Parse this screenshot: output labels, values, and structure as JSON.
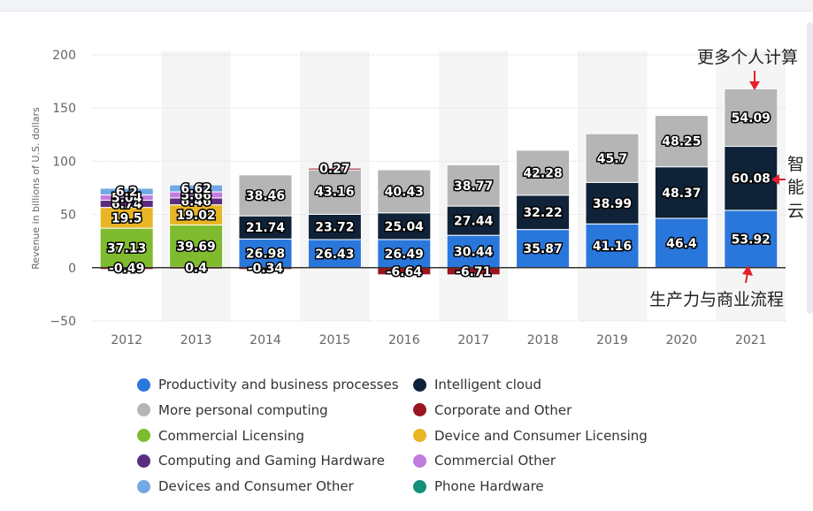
{
  "chart_data": {
    "type": "bar",
    "stacked": true,
    "ylabel": "Revenue in billions of U.S. dollars",
    "ylim": [
      -50,
      200
    ],
    "yticks": [
      200,
      150,
      100,
      50,
      0,
      -50
    ],
    "categories": [
      "2012",
      "2013",
      "2014",
      "2015",
      "2016",
      "2017",
      "2018",
      "2019",
      "2020",
      "2021"
    ],
    "series": [
      {
        "name": "Productivity and business processes",
        "color": "#2a77dc",
        "values": [
          0,
          0,
          26.98,
          26.43,
          26.49,
          30.44,
          35.87,
          41.16,
          46.4,
          53.92
        ]
      },
      {
        "name": "Intelligent cloud",
        "color": "#0f2237",
        "values": [
          0,
          0,
          21.74,
          23.72,
          25.04,
          27.44,
          32.22,
          38.99,
          48.37,
          60.08
        ]
      },
      {
        "name": "More personal computing",
        "color": "#b5b5b5",
        "values": [
          0,
          0,
          38.46,
          43.16,
          40.43,
          38.77,
          42.28,
          45.7,
          48.25,
          54.09
        ]
      },
      {
        "name": "Corporate and Other",
        "color": "#9b1421",
        "values": [
          -0.49,
          0.4,
          -0.34,
          0.27,
          -6.64,
          -6.71,
          0,
          0,
          0,
          0
        ]
      },
      {
        "name": "Commercial Licensing",
        "color": "#7fbb2e",
        "values": [
          37.13,
          39.69,
          0,
          0,
          0,
          0,
          0,
          0,
          0,
          0
        ]
      },
      {
        "name": "Device and Consumer Licensing",
        "color": "#e8b526",
        "values": [
          19.5,
          19.02,
          0,
          0,
          0,
          0,
          0,
          0,
          0,
          0
        ]
      },
      {
        "name": "Computing and Gaming Hardware",
        "color": "#5c2d7e",
        "values": [
          6.74,
          6.46,
          0,
          0,
          0,
          0,
          0,
          0,
          0,
          0
        ]
      },
      {
        "name": "Commercial Other",
        "color": "#c27ce0",
        "values": [
          5.04,
          5.66,
          0,
          0,
          0,
          0,
          0,
          0,
          0,
          0
        ]
      },
      {
        "name": "Devices and Consumer Other",
        "color": "#72a8e3",
        "values": [
          6.2,
          6.62,
          0,
          0,
          0,
          0,
          0,
          0,
          0,
          0
        ]
      },
      {
        "name": "Phone Hardware",
        "color": "#14917a",
        "values": [
          0,
          0,
          0,
          0,
          0,
          0,
          0,
          0,
          0,
          0
        ]
      }
    ],
    "data_label_text": {
      "Productivity and business processes": [
        "",
        "",
        "26.98",
        "26.43",
        "26.49",
        "30.44",
        "35.87",
        "41.16",
        "46.4",
        "53.92"
      ],
      "Intelligent cloud": [
        "",
        "",
        "21.74",
        "23.72",
        "25.04",
        "27.44",
        "32.22",
        "38.99",
        "48.37",
        "60.08"
      ],
      "More personal computing": [
        "",
        "",
        "38.46",
        "43.16",
        "40.43",
        "38.77",
        "42.28",
        "45.7",
        "48.25",
        "54.09"
      ],
      "Corporate and Other": [
        "-0.49",
        "0.4",
        "-0.34",
        "0.27",
        "-6.64",
        "-6.71",
        "",
        "",
        "",
        ""
      ],
      "Commercial Licensing": [
        "37.13",
        "39.69",
        "",
        "",
        "",
        "",
        "",
        "",
        "",
        ""
      ],
      "Device and Consumer Licensing": [
        "19.5",
        "19.02",
        "",
        "",
        "",
        "",
        "",
        "",
        "",
        ""
      ],
      "Computing and Gaming Hardware": [
        "6.74",
        "6.46",
        "",
        "",
        "",
        "",
        "",
        "",
        "",
        ""
      ],
      "Commercial Other": [
        "5.04",
        "5.66",
        "",
        "",
        "",
        "",
        "",
        "",
        "",
        ""
      ],
      "Devices and Consumer Other": [
        "6.2",
        "6.62",
        "",
        "",
        "",
        "",
        "",
        "",
        "",
        ""
      ]
    },
    "legend": [
      {
        "label": "Productivity and business processes",
        "color": "#2a77dc"
      },
      {
        "label": "Intelligent cloud",
        "color": "#0f2237"
      },
      {
        "label": "More personal computing",
        "color": "#b5b5b5"
      },
      {
        "label": "Corporate and Other",
        "color": "#9b1421"
      },
      {
        "label": "Commercial Licensing",
        "color": "#7fbb2e"
      },
      {
        "label": "Device and Consumer Licensing",
        "color": "#e8b526"
      },
      {
        "label": "Computing and Gaming Hardware",
        "color": "#5c2d7e"
      },
      {
        "label": "Commercial Other",
        "color": "#c27ce0"
      },
      {
        "label": "Devices and Consumer Other",
        "color": "#72a8e3"
      },
      {
        "label": "Phone Hardware",
        "color": "#14917a"
      }
    ],
    "annotations": {
      "more_personal_computing": "更多个人计算",
      "intelligent_cloud": [
        "智",
        "能",
        "云"
      ],
      "productivity": "生产力与商业流程"
    },
    "grid": true
  }
}
